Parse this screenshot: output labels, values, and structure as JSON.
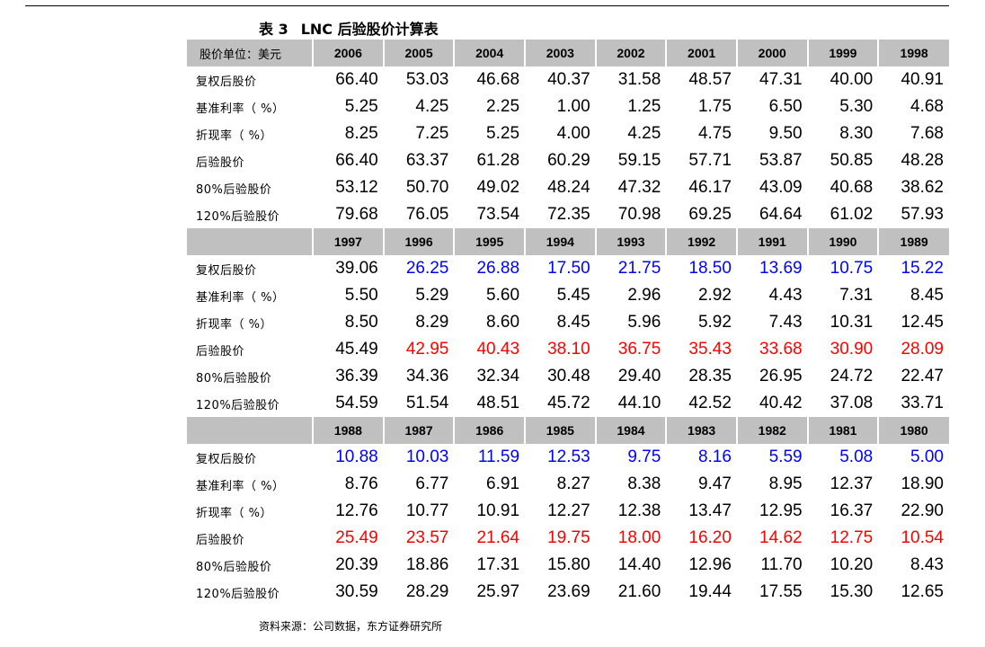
{
  "caption": {
    "label": "表 3",
    "title": "LNC 后验股价计算表"
  },
  "header_label": "股价单位：美元",
  "row_labels": [
    "复权后股价",
    "基准利率（ %）",
    "折现率（ %）",
    "后验股价",
    "80%后验股价",
    "120%后验股价"
  ],
  "colors": {
    "header_bg": "#c0c0c0",
    "blue": "#0000ff",
    "red": "#ff0000"
  },
  "sections": [
    {
      "years": [
        "2006",
        "2005",
        "2004",
        "2003",
        "2002",
        "2001",
        "2000",
        "1999",
        "1998"
      ],
      "rows": [
        [
          "66.40",
          "53.03",
          "46.68",
          "40.37",
          "31.58",
          "48.57",
          "47.31",
          "40.00",
          "40.91"
        ],
        [
          "5.25",
          "4.25",
          "2.25",
          "1.00",
          "1.25",
          "1.75",
          "6.50",
          "5.30",
          "4.68"
        ],
        [
          "8.25",
          "7.25",
          "5.25",
          "4.00",
          "4.25",
          "4.75",
          "9.50",
          "8.30",
          "7.68"
        ],
        [
          "66.40",
          "63.37",
          "61.28",
          "60.29",
          "59.15",
          "57.71",
          "53.87",
          "50.85",
          "48.28"
        ],
        [
          "53.12",
          "50.70",
          "49.02",
          "48.24",
          "47.32",
          "46.17",
          "43.09",
          "40.68",
          "38.62"
        ],
        [
          "79.68",
          "76.05",
          "73.54",
          "72.35",
          "70.98",
          "69.25",
          "64.64",
          "61.02",
          "57.93"
        ]
      ],
      "row_colors": [
        "",
        "",
        "",
        "",
        "",
        ""
      ],
      "first_col_black": false
    },
    {
      "years": [
        "1997",
        "1996",
        "1995",
        "1994",
        "1993",
        "1992",
        "1991",
        "1990",
        "1989"
      ],
      "rows": [
        [
          "39.06",
          "26.25",
          "26.88",
          "17.50",
          "21.75",
          "18.50",
          "13.69",
          "10.75",
          "15.22"
        ],
        [
          "5.50",
          "5.29",
          "5.60",
          "5.45",
          "2.96",
          "2.92",
          "4.43",
          "7.31",
          "8.45"
        ],
        [
          "8.50",
          "8.29",
          "8.60",
          "8.45",
          "5.96",
          "5.92",
          "7.43",
          "10.31",
          "12.45"
        ],
        [
          "45.49",
          "42.95",
          "40.43",
          "38.10",
          "36.75",
          "35.43",
          "33.68",
          "30.90",
          "28.09"
        ],
        [
          "36.39",
          "34.36",
          "32.34",
          "30.48",
          "29.40",
          "28.35",
          "26.95",
          "24.72",
          "22.47"
        ],
        [
          "54.59",
          "51.54",
          "48.51",
          "45.72",
          "44.10",
          "42.52",
          "40.42",
          "37.08",
          "33.71"
        ]
      ],
      "row_colors": [
        "blue",
        "",
        "",
        "red",
        "",
        ""
      ],
      "first_col_black": true
    },
    {
      "years": [
        "1988",
        "1987",
        "1986",
        "1985",
        "1984",
        "1983",
        "1982",
        "1981",
        "1980"
      ],
      "rows": [
        [
          "10.88",
          "10.03",
          "11.59",
          "12.53",
          "9.75",
          "8.16",
          "5.59",
          "5.08",
          "5.00"
        ],
        [
          "8.76",
          "6.77",
          "6.91",
          "8.27",
          "8.38",
          "9.47",
          "8.95",
          "12.37",
          "18.90"
        ],
        [
          "12.76",
          "10.77",
          "10.91",
          "12.27",
          "12.38",
          "13.47",
          "12.95",
          "16.37",
          "22.90"
        ],
        [
          "25.49",
          "23.57",
          "21.64",
          "19.75",
          "18.00",
          "16.20",
          "14.62",
          "12.75",
          "10.54"
        ],
        [
          "20.39",
          "18.86",
          "17.31",
          "15.80",
          "14.40",
          "12.96",
          "11.70",
          "10.20",
          "8.43"
        ],
        [
          "30.59",
          "28.29",
          "25.97",
          "23.69",
          "21.60",
          "19.44",
          "17.55",
          "15.30",
          "12.65"
        ]
      ],
      "row_colors": [
        "blue",
        "",
        "",
        "red",
        "",
        ""
      ],
      "first_col_black": false
    }
  ],
  "source": "资料来源：公司数据，东方证券研究所"
}
